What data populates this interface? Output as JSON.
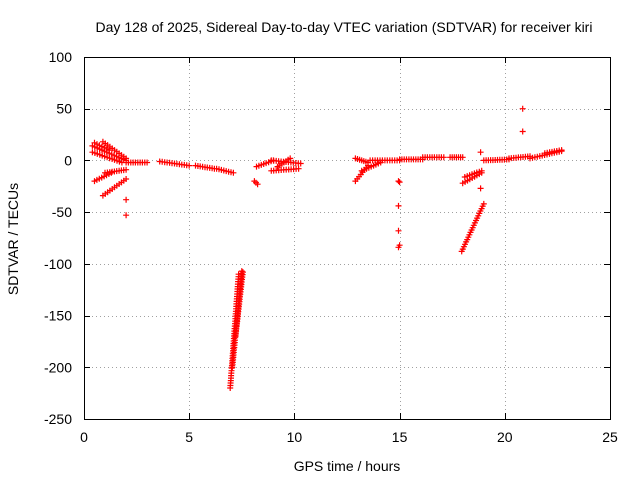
{
  "chart_data": {
    "type": "scatter",
    "title": "Day 128 of 2025, Sidereal Day-to-day VTEC variation (SDTVAR) for receiver kiri",
    "xlabel": "GPS time / hours",
    "ylabel": "SDTVAR / TECUs",
    "xlim": [
      0,
      25
    ],
    "ylim": [
      -250,
      100
    ],
    "xticks": [
      0,
      5,
      10,
      15,
      20,
      25
    ],
    "yticks": [
      100,
      50,
      0,
      -50,
      -100,
      -150,
      -200,
      -250
    ],
    "grid": true,
    "marker": "+",
    "color": "#ff0000",
    "series": [
      {
        "name": "SDTVAR",
        "segments": [
          {
            "x": [
              0.4,
              2.0
            ],
            "y": [
              14,
              0
            ]
          },
          {
            "x": [
              0.4,
              1.8
            ],
            "y": [
              8,
              -2
            ]
          },
          {
            "x": [
              0.5,
              1.2
            ],
            "y": [
              17,
              10
            ]
          },
          {
            "x": [
              0.9,
              2.0
            ],
            "y": [
              18,
              2
            ]
          },
          {
            "x": [
              0.5,
              1.3
            ],
            "y": [
              -20,
              -12
            ]
          },
          {
            "x": [
              1.0,
              2.0
            ],
            "y": [
              -12,
              -9
            ]
          },
          {
            "x": [
              0.9,
              2.0
            ],
            "y": [
              -34,
              -18
            ]
          },
          {
            "x": [
              2.0,
              3.0
            ],
            "y": [
              -2,
              -2
            ]
          },
          {
            "x": [
              3.6,
              5.0
            ],
            "y": [
              -1,
              -5
            ]
          },
          {
            "x": [
              5.3,
              6.2
            ],
            "y": [
              -5,
              -8
            ]
          },
          {
            "x": [
              6.3,
              7.1
            ],
            "y": [
              -8,
              -12
            ]
          },
          {
            "x": [
              6.95,
              7.35
            ],
            "y": [
              -220,
              -110
            ]
          },
          {
            "x": [
              7.05,
              7.5
            ],
            "y": [
              -200,
              -107
            ]
          },
          {
            "x": [
              7.2,
              7.55
            ],
            "y": [
              -170,
              -108
            ]
          },
          {
            "x": [
              8.1,
              8.25
            ],
            "y": [
              -20,
              -23
            ]
          },
          {
            "x": [
              8.2,
              9.0
            ],
            "y": [
              -6,
              0
            ]
          },
          {
            "x": [
              8.9,
              10.3
            ],
            "y": [
              0,
              -3
            ]
          },
          {
            "x": [
              8.9,
              10.2
            ],
            "y": [
              -10,
              -8
            ]
          },
          {
            "x": [
              9.2,
              9.8
            ],
            "y": [
              -6,
              2
            ]
          },
          {
            "x": [
              12.9,
              13.5
            ],
            "y": [
              -20,
              -5
            ]
          },
          {
            "x": [
              12.9,
              13.5
            ],
            "y": [
              2,
              -2
            ]
          },
          {
            "x": [
              13.2,
              14.1
            ],
            "y": [
              -10,
              -2
            ]
          },
          {
            "x": [
              13.6,
              15.0
            ],
            "y": [
              0,
              0
            ]
          },
          {
            "x": [
              15.0,
              16.1
            ],
            "y": [
              1,
              1
            ]
          },
          {
            "x": [
              16.1,
              17.1
            ],
            "y": [
              3,
              3
            ]
          },
          {
            "x": [
              17.4,
              18.0
            ],
            "y": [
              3,
              3
            ]
          },
          {
            "x": [
              18.0,
              18.9
            ],
            "y": [
              -22,
              -12
            ]
          },
          {
            "x": [
              18.1,
              18.9
            ],
            "y": [
              -16,
              -10
            ]
          },
          {
            "x": [
              17.95,
              19.0
            ],
            "y": [
              -88,
              -42
            ]
          },
          {
            "x": [
              19.0,
              20.2
            ],
            "y": [
              0,
              1
            ]
          },
          {
            "x": [
              20.2,
              21.2
            ],
            "y": [
              2,
              4
            ]
          },
          {
            "x": [
              21.2,
              22.7
            ],
            "y": [
              2,
              9
            ]
          },
          {
            "x": [
              21.9,
              22.7
            ],
            "y": [
              7,
              10
            ]
          }
        ],
        "points": [
          {
            "x": 2.0,
            "y": -38
          },
          {
            "x": 2.0,
            "y": -53
          },
          {
            "x": 14.95,
            "y": -20
          },
          {
            "x": 15.0,
            "y": -21
          },
          {
            "x": 14.95,
            "y": -44
          },
          {
            "x": 14.95,
            "y": -68
          },
          {
            "x": 15.0,
            "y": -82
          },
          {
            "x": 14.95,
            "y": -84
          },
          {
            "x": 18.85,
            "y": -27
          },
          {
            "x": 18.85,
            "y": 8
          },
          {
            "x": 20.85,
            "y": 50
          },
          {
            "x": 20.85,
            "y": 28
          }
        ]
      }
    ]
  }
}
